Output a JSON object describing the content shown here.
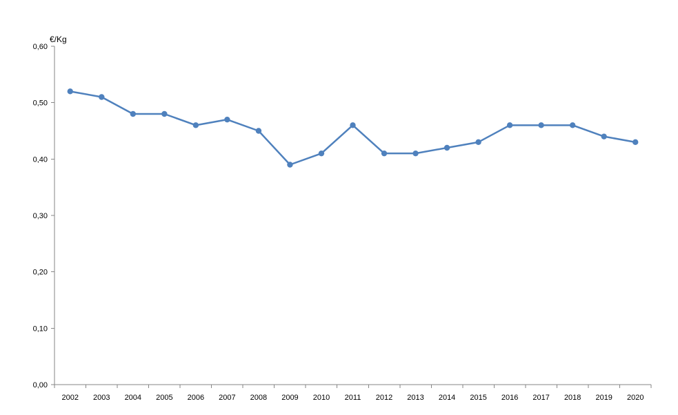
{
  "chart_data": {
    "type": "line",
    "title": "",
    "xlabel": "",
    "ylabel": "€/Kg",
    "categories": [
      "2002",
      "2003",
      "2004",
      "2005",
      "2006",
      "2007",
      "2008",
      "2009",
      "2010",
      "2011",
      "2012",
      "2013",
      "2014",
      "2015",
      "2016",
      "2017",
      "2018",
      "2019",
      "2020"
    ],
    "series": [
      {
        "values": [
          0.52,
          0.51,
          0.48,
          0.48,
          0.46,
          0.47,
          0.45,
          0.39,
          0.41,
          0.46,
          0.41,
          0.41,
          0.42,
          0.43,
          0.46,
          0.46,
          0.46,
          0.44,
          0.43
        ]
      }
    ],
    "ylim": [
      0,
      0.6
    ],
    "yticks": [
      0.0,
      0.1,
      0.2,
      0.3,
      0.4,
      0.5,
      0.6
    ],
    "ytick_labels": [
      "0,00",
      "0,10",
      "0,20",
      "0,30",
      "0,40",
      "0,50",
      "0,60"
    ],
    "grid": false,
    "legend": "none",
    "colors": {
      "series": "#4F81BD",
      "axis": "#868686"
    }
  }
}
